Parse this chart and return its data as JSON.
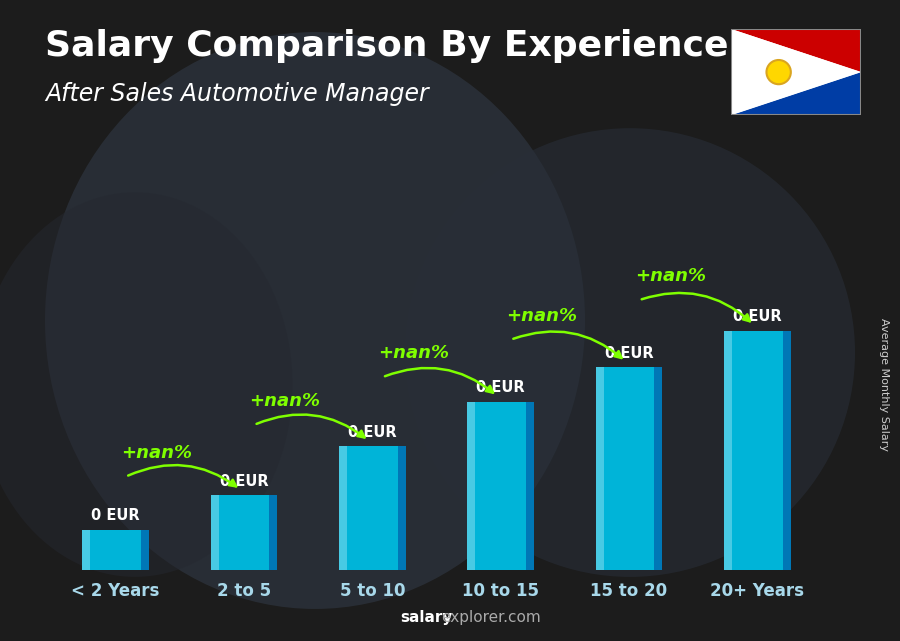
{
  "title": "Salary Comparison By Experience",
  "subtitle": "After Sales Automotive Manager",
  "categories": [
    "< 2 Years",
    "2 to 5",
    "5 to 10",
    "10 to 15",
    "15 to 20",
    "20+ Years"
  ],
  "value_labels": [
    "0 EUR",
    "0 EUR",
    "0 EUR",
    "0 EUR",
    "0 EUR",
    "0 EUR"
  ],
  "pct_labels": [
    "+nan%",
    "+nan%",
    "+nan%",
    "+nan%",
    "+nan%"
  ],
  "bar_color_main": "#00b4d8",
  "bar_color_light": "#48cae4",
  "bar_color_dark": "#0077b6",
  "pct_color": "#7fff00",
  "title_color": "#ffffff",
  "subtitle_color": "#ffffff",
  "value_label_color": "#ffffff",
  "ylabel": "Average Monthly Salary",
  "footer_salary": "salary",
  "footer_rest": "explorer.com",
  "background_color": "#2a2a2a",
  "title_fontsize": 26,
  "subtitle_fontsize": 17,
  "bar_heights": [
    1.0,
    1.85,
    3.05,
    4.15,
    5.0,
    5.9
  ],
  "bar_width": 0.52,
  "xlim": [
    -0.55,
    5.55
  ],
  "ylim_factor": 1.55
}
